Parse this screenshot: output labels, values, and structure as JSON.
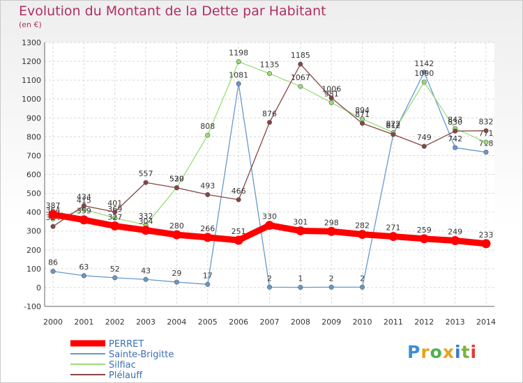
{
  "header": {
    "title": "Evolution du Montant de la Dette par Habitant",
    "unit": "(en €)"
  },
  "logo": {
    "text": "Proxiti",
    "colors": [
      "#3a8fd6",
      "#e8a21c",
      "#4caf50",
      "#e8a21c",
      "#2f7fc9",
      "#7cb342",
      "#e53935"
    ]
  },
  "chart_data": {
    "type": "line",
    "title": "Evolution du Montant de la Dette par Habitant",
    "ylabel": "(en €)",
    "xlabel": "",
    "ylim": [
      -100,
      1300
    ],
    "yticks": [
      -100,
      0,
      100,
      200,
      300,
      400,
      500,
      600,
      700,
      800,
      900,
      1000,
      1100,
      1200,
      1300
    ],
    "categories": [
      "2000",
      "2001",
      "2002",
      "2003",
      "2004",
      "2005",
      "2006",
      "2007",
      "2008",
      "2009",
      "2010",
      "2011",
      "2012",
      "2013",
      "2014"
    ],
    "grid": true,
    "legend_position": "bottom-left",
    "series": [
      {
        "name": "PERRET",
        "color": "#ff0000",
        "thick": true,
        "values": [
          387,
          359,
          327,
          304,
          280,
          266,
          251,
          330,
          301,
          298,
          282,
          271,
          259,
          249,
          233
        ]
      },
      {
        "name": "Sainte-Brigitte",
        "color": "#6699cc",
        "thick": false,
        "values": [
          86,
          63,
          52,
          43,
          29,
          17,
          1081,
          2,
          1,
          2,
          2,
          812,
          1142,
          742,
          718
        ]
      },
      {
        "name": "Silfiac",
        "color": "#99dd77",
        "thick": false,
        "values": [
          364,
          415,
          369,
          332,
          530,
          808,
          1198,
          1135,
          1067,
          981,
          894,
          822,
          1090,
          843,
          771
        ]
      },
      {
        "name": "Plélauff",
        "color": "#884444",
        "thick": false,
        "values": [
          324,
          434,
          401,
          557,
          529,
          493,
          466,
          876,
          1185,
          1006,
          871,
          812,
          749,
          830,
          832
        ]
      }
    ]
  }
}
